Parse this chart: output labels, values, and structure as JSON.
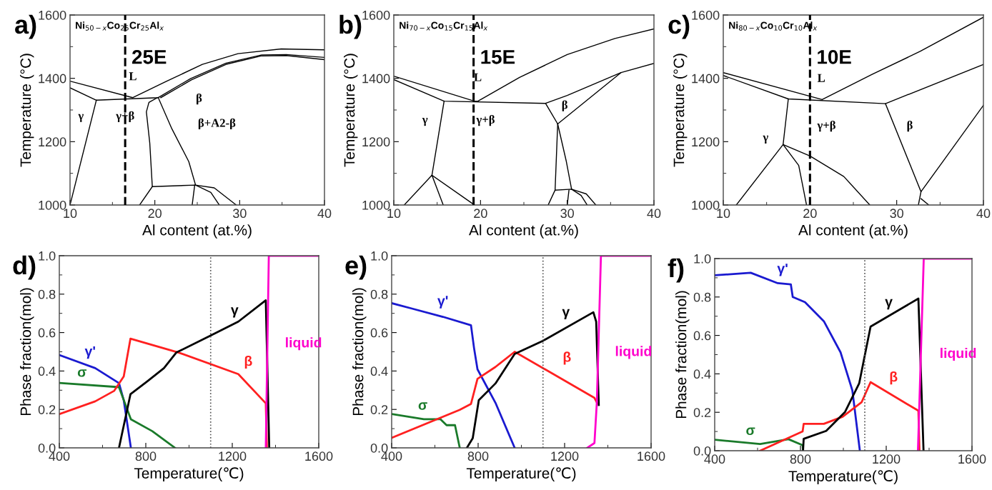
{
  "chart_data": [
    {
      "type": "line",
      "title": "a)",
      "xlabel": "Al content (at.%)",
      "ylabel": "Temperature (°C)",
      "xlim": [
        10,
        40
      ],
      "ylim": [
        1000,
        1600
      ],
      "xticks": [
        10,
        {
          "value": 15,
          "label": null
        },
        20,
        {
          "value": 25,
          "label": null
        },
        30,
        {
          "value": 35,
          "label": null
        },
        40
      ],
      "yticks": [
        1000,
        {
          "value": 1100,
          "label": null
        },
        1200,
        {
          "value": 1300,
          "label": null
        },
        1400,
        {
          "value": 1500,
          "label": null
        },
        1600
      ],
      "ref_lines": [
        {
          "axis": "x",
          "value": 16.5,
          "label": "25E",
          "color": "#000000",
          "line_style": "dashed"
        }
      ],
      "annotations": [
        "Ni$_{50−x}$Co$_{25}$Cr$_{25}$Al$_{x}$",
        "L",
        "γ",
        "γ+β",
        "β",
        "β+A2-β"
      ],
      "series": [
        {
          "color": "#000000",
          "x": [
            10,
            17.4,
            21.4,
            25.6,
            29.8,
            34.9,
            40
          ],
          "values": [
            1391,
            1339,
            1391,
            1444,
            1478,
            1493,
            1490
          ]
        },
        {
          "color": "#000000",
          "x": [
            10,
            13.1,
            20.4,
            24.2,
            28.4,
            32.6,
            35.5,
            40
          ],
          "values": [
            1370,
            1331,
            1339,
            1399,
            1448,
            1474,
            1475,
            1466
          ]
        },
        {
          "color": "#000000",
          "x": [
            13.1,
            10
          ],
          "values": [
            1331,
            1000
          ]
        },
        {
          "color": "#000000",
          "x": [
            20.7,
            24.3,
            28.5,
            32.6,
            35.5,
            40
          ],
          "values": [
            1339,
            1395,
            1445,
            1471,
            1472,
            1459
          ]
        },
        {
          "color": "#000000",
          "x": [
            20.3,
            19.3,
            19.0,
            19.4,
            19.7,
            24.8,
            27.0,
            29.6
          ],
          "values": [
            1339,
            1324,
            1294,
            1196,
            1058,
            1063,
            1054,
            1000
          ]
        },
        {
          "color": "#000000",
          "x": [
            19.7,
            18.2
          ],
          "values": [
            1058,
            1000
          ]
        },
        {
          "color": "#000000",
          "x": [
            20.4,
            22.0,
            24.0,
            24.8,
            26.6,
            27.6
          ],
          "values": [
            1339,
            1241,
            1137,
            1063,
            1040,
            1000
          ]
        },
        {
          "color": "#000000",
          "x": [
            24.7,
            24.4
          ],
          "values": [
            1063,
            1000
          ]
        }
      ]
    },
    {
      "type": "line",
      "title": "b)",
      "xlabel": "Al content (at.%)",
      "ylabel": "Temperature (°C)",
      "xlim": [
        10,
        40
      ],
      "ylim": [
        1000,
        1600
      ],
      "xticks": [
        10,
        {
          "value": 15,
          "label": null
        },
        20,
        {
          "value": 25,
          "label": null
        },
        30,
        {
          "value": 35,
          "label": null
        },
        40
      ],
      "yticks": [
        1000,
        {
          "value": 1100,
          "label": null
        },
        1200,
        {
          "value": 1300,
          "label": null
        },
        1400,
        {
          "value": 1500,
          "label": null
        },
        1600
      ],
      "ref_lines": [
        {
          "axis": "x",
          "value": 19.2,
          "label": "15E",
          "color": "#000000",
          "line_style": "dashed"
        }
      ],
      "annotations": [
        "Ni$_{70−x}$Co$_{15}$Cr$_{15}$Al$_{x}$",
        "L",
        "γ",
        "γ+β",
        "β"
      ],
      "series": [
        {
          "color": "#000000",
          "x": [
            10,
            19.3,
            19.7,
            24.5,
            30.0,
            35.5,
            40
          ],
          "values": [
            1407,
            1328,
            1328,
            1403,
            1475,
            1526,
            1556
          ]
        },
        {
          "color": "#000000",
          "x": [
            10,
            15.8,
            27.5,
            30.0,
            36.2,
            40
          ],
          "values": [
            1396,
            1328,
            1321,
            1346,
            1418,
            1447
          ]
        },
        {
          "color": "#000000",
          "x": [
            15.8,
            14.4,
            11.2
          ],
          "values": [
            1328,
            1094,
            1000
          ]
        },
        {
          "color": "#000000",
          "x": [
            14.4,
            15.7
          ],
          "values": [
            1094,
            1000
          ]
        },
        {
          "color": "#000000",
          "x": [
            14.4,
            19.1
          ],
          "values": [
            1094,
            1004
          ]
        },
        {
          "color": "#000000",
          "x": [
            27.5,
            28.9,
            36.2
          ],
          "values": [
            1321,
            1256,
            1418
          ]
        },
        {
          "color": "#000000",
          "x": [
            28.9,
            28.6,
            27.8
          ],
          "values": [
            1256,
            1047,
            1000
          ]
        },
        {
          "color": "#000000",
          "x": [
            28.9,
            29.9,
            30.5
          ],
          "values": [
            1256,
            1137,
            1050
          ]
        },
        {
          "color": "#000000",
          "x": [
            28.6,
            30.5,
            31.6,
            32.3
          ],
          "values": [
            1047,
            1050,
            1030,
            1000
          ]
        },
        {
          "color": "#000000",
          "x": [
            30.5,
            32.2,
            33.3
          ],
          "values": [
            1050,
            1035,
            1000
          ]
        },
        {
          "color": "#000000",
          "x": [
            30.2,
            30.0
          ],
          "values": [
            1047,
            1000
          ]
        }
      ]
    },
    {
      "type": "line",
      "title": "c)",
      "xlabel": "Al content (at.%)",
      "ylabel": "Temperature (°C)",
      "xlim": [
        10,
        40
      ],
      "ylim": [
        1000,
        1600
      ],
      "xticks": [
        10,
        {
          "value": 15,
          "label": null
        },
        20,
        {
          "value": 25,
          "label": null
        },
        30,
        {
          "value": 35,
          "label": null
        },
        40
      ],
      "yticks": [
        1000,
        {
          "value": 1100,
          "label": null
        },
        1200,
        {
          "value": 1300,
          "label": null
        },
        1400,
        {
          "value": 1500,
          "label": null
        },
        1600
      ],
      "ref_lines": [
        {
          "axis": "x",
          "value": 20.0,
          "label": "10E",
          "color": "#000000",
          "line_style": "dashed"
        }
      ],
      "annotations": [
        "Ni$_{80−x}$Co$_{10}$Cr$_{10}$Al$_{x}$",
        "L",
        "γ",
        "γ+β",
        "β"
      ],
      "series": [
        {
          "color": "#000000",
          "x": [
            10,
            21.4,
            27.2,
            32.7,
            40
          ],
          "values": [
            1418,
            1333,
            1413,
            1485,
            1593
          ]
        },
        {
          "color": "#000000",
          "x": [
            10,
            17.5,
            28.7,
            40
          ],
          "values": [
            1409,
            1335,
            1320,
            1444
          ]
        },
        {
          "color": "#000000",
          "x": [
            17.5,
            16.9,
            11.5
          ],
          "values": [
            1335,
            1191,
            1000
          ]
        },
        {
          "color": "#000000",
          "x": [
            16.9,
            18.7,
            19.6
          ],
          "values": [
            1191,
            1125,
            1000
          ]
        },
        {
          "color": "#000000",
          "x": [
            16.9,
            20.0,
            23.9,
            26.9
          ],
          "values": [
            1191,
            1155,
            1090,
            1000
          ]
        },
        {
          "color": "#000000",
          "x": [
            28.7,
            32.8,
            35.4,
            40
          ],
          "values": [
            1320,
            1042,
            1140,
            1315
          ]
        },
        {
          "color": "#000000",
          "x": [
            32.8,
            32.5
          ],
          "values": [
            1042,
            1000
          ]
        },
        {
          "color": "#000000",
          "x": [
            32.8,
            33.7
          ],
          "values": [
            1020,
            1000
          ]
        }
      ]
    },
    {
      "type": "line",
      "title": "d)",
      "xlabel": "Temperature(℃)",
      "ylabel": "Phase fraction(mol)",
      "xlim": [
        400,
        1600
      ],
      "ylim": [
        0,
        1
      ],
      "xticks": [
        400,
        {
          "value": 600,
          "label": null
        },
        800,
        {
          "value": 1000,
          "label": null
        },
        1200,
        {
          "value": 1400,
          "label": null
        },
        1600
      ],
      "yticks": [
        {
          "value": 0,
          "label": "0.0"
        },
        {
          "value": 0.1,
          "label": null
        },
        {
          "value": 0.2,
          "label": "0.2"
        },
        {
          "value": 0.3,
          "label": null
        },
        {
          "value": 0.4,
          "label": "0.4"
        },
        {
          "value": 0.5,
          "label": null
        },
        {
          "value": 0.6,
          "label": "0.6"
        },
        {
          "value": 0.7,
          "label": null
        },
        {
          "value": 0.8,
          "label": "0.8"
        },
        {
          "value": 0.9,
          "label": null
        },
        {
          "value": 1,
          "label": "1.0"
        }
      ],
      "ref_lines": [
        {
          "axis": "x",
          "value": 1100,
          "color": "#555555",
          "line_style": "dotted"
        }
      ],
      "annotations": [
        {
          "text": "γ'",
          "x": 543,
          "y": 0.425
        },
        {
          "text": "σ",
          "x": 505,
          "y": 0.327
        },
        {
          "text": "β",
          "x": 1228,
          "y": 0.384
        },
        {
          "text": "γ",
          "x": 1211,
          "y": 0.65
        },
        {
          "text": "liquid",
          "x": 1364,
          "y": 0.64
        }
      ],
      "series": [
        {
          "color": "#1a1ad0",
          "x": [
            400,
            566,
            676,
            698,
            731
          ],
          "values": [
            0.483,
            0.415,
            0.337,
            0.248,
            0
          ]
        },
        {
          "color": "#1a7a2a",
          "x": [
            400,
            676,
            731,
            830,
            935
          ],
          "values": [
            0.338,
            0.316,
            0.149,
            0.087,
            0
          ]
        },
        {
          "color": "#ff2020",
          "x": [
            400,
            566,
            654,
            698,
            729,
            952,
            1228,
            1355,
            1360
          ],
          "values": [
            0.176,
            0.242,
            0.297,
            0.372,
            0.568,
            0.496,
            0.384,
            0.232,
            0
          ]
        },
        {
          "color": "#000000",
          "x": [
            676,
            729,
            808,
            884,
            941,
            1095,
            1228,
            1355,
            1371
          ],
          "values": [
            0,
            0.279,
            0.347,
            0.415,
            0.496,
            0.582,
            0.657,
            0.768,
            0
          ]
        },
        {
          "color": "#ff00cc",
          "x": [
            1355,
            1369,
            1600
          ],
          "values": [
            0,
            1,
            1
          ]
        }
      ]
    },
    {
      "type": "line",
      "title": "e)",
      "xlabel": "Temperature(℃)",
      "ylabel": "Phase fraction(mol)",
      "xlim": [
        400,
        1600
      ],
      "ylim": [
        0,
        1
      ],
      "xticks": [
        400,
        {
          "value": 600,
          "label": null
        },
        800,
        {
          "value": 1000,
          "label": null
        },
        1200,
        {
          "value": 1400,
          "label": null
        },
        1600
      ],
      "yticks": [
        {
          "value": 0,
          "label": "0.0"
        },
        {
          "value": 0.1,
          "label": null
        },
        {
          "value": 0.2,
          "label": "0.2"
        },
        {
          "value": 0.3,
          "label": null
        },
        {
          "value": 0.4,
          "label": "0.4"
        },
        {
          "value": 0.5,
          "label": null
        },
        {
          "value": 0.6,
          "label": "0.6"
        },
        {
          "value": 0.7,
          "label": null
        },
        {
          "value": 0.8,
          "label": "0.8"
        },
        {
          "value": 0.9,
          "label": null
        },
        {
          "value": 1,
          "label": "1.0"
        }
      ],
      "ref_lines": [
        {
          "axis": "x",
          "value": 1100,
          "color": "#555555",
          "line_style": "dotted"
        }
      ],
      "annotations": [
        {
          "text": "γ'",
          "x": 637,
          "y": 0.682
        },
        {
          "text": "σ",
          "x": 544,
          "y": 0.15
        },
        {
          "text": "β",
          "x": 1211,
          "y": 0.343
        },
        {
          "text": "γ",
          "x": 1206,
          "y": 0.625
        },
        {
          "text": "liquid",
          "x": 1358,
          "y": 0.6
        }
      ],
      "series": [
        {
          "color": "#1a1ad0",
          "x": [
            400,
            494,
            637,
            767,
            781,
            797,
            880,
            969
          ],
          "values": [
            0.753,
            0.725,
            0.682,
            0.638,
            0.52,
            0.409,
            0.235,
            0
          ]
        },
        {
          "color": "#1a7a2a",
          "x": [
            400,
            549,
            626,
            654,
            693,
            715
          ],
          "values": [
            0.176,
            0.149,
            0.149,
            0.118,
            0.118,
            0
          ]
        },
        {
          "color": "#ff2020",
          "x": [
            400,
            715,
            767,
            797,
            880,
            969,
            1338,
            1352
          ],
          "values": [
            0.052,
            0.198,
            0.229,
            0.359,
            0.421,
            0.5,
            0.26,
            0.23
          ]
        },
        {
          "color": "#000000",
          "x": [
            748,
            775,
            803,
            880,
            969,
            1101,
            1333,
            1346,
            1358
          ],
          "values": [
            0,
            0.05,
            0.248,
            0.335,
            0.489,
            0.558,
            0.706,
            0.657,
            0.223
          ]
        },
        {
          "color": "#ff00cc",
          "x": [
            1305,
            1338,
            1349,
            1368,
            1600
          ],
          "values": [
            0,
            0.025,
            0.235,
            1,
            1
          ]
        }
      ]
    },
    {
      "type": "line",
      "title": "f)",
      "xlabel": "Temperature(℃)",
      "ylabel": "Phase fraction(mol)",
      "xlim": [
        400,
        1600
      ],
      "ylim": [
        0,
        1
      ],
      "xticks": [
        400,
        {
          "value": 600,
          "label": null
        },
        800,
        {
          "value": 1000,
          "label": null
        },
        1200,
        {
          "value": 1400,
          "label": null
        },
        1600
      ],
      "yticks": [
        {
          "value": 0,
          "label": "0.0"
        },
        {
          "value": 0.1,
          "label": null
        },
        {
          "value": 0.2,
          "label": "0.2"
        },
        {
          "value": 0.3,
          "label": null
        },
        {
          "value": 0.4,
          "label": "0.4"
        },
        {
          "value": 0.5,
          "label": null
        },
        {
          "value": 0.6,
          "label": "0.6"
        },
        {
          "value": 0.7,
          "label": null
        },
        {
          "value": 0.8,
          "label": "0.8"
        },
        {
          "value": 0.9,
          "label": null
        },
        {
          "value": 1,
          "label": "1.0"
        }
      ],
      "ref_lines": [
        {
          "axis": "x",
          "value": 1100,
          "color": "#555555",
          "line_style": "dotted"
        }
      ],
      "annotations": [
        {
          "text": "γ'",
          "x": 717,
          "y": 0.87
        },
        {
          "text": "σ",
          "x": 567,
          "y": 0.039
        },
        {
          "text": "β",
          "x": 1234,
          "y": 0.286
        },
        {
          "text": "γ",
          "x": 1212,
          "y": 0.702
        },
        {
          "text": "liquid",
          "x": 1364,
          "y": 0.6
        }
      ],
      "series": [
        {
          "color": "#1a1ad0",
          "x": [
            400,
            568,
            694,
            755,
            764,
            821,
            909,
            987,
            1042,
            1077
          ],
          "values": [
            0.913,
            0.926,
            0.872,
            0.866,
            0.8,
            0.773,
            0.674,
            0.512,
            0.314,
            0
          ]
        },
        {
          "color": "#1a7a2a",
          "x": [
            400,
            612,
            744,
            810,
            812
          ],
          "values": [
            0.057,
            0.035,
            0.06,
            0.029,
            0
          ]
        },
        {
          "color": "#ff2020",
          "x": [
            612,
            810,
            815,
            909,
            997,
            1085,
            1127,
            1350,
            1355
          ],
          "values": [
            0,
            0.1,
            0.14,
            0.14,
            0.177,
            0.252,
            0.357,
            0.208,
            0
          ]
        },
        {
          "color": "#000000",
          "x": [
            812,
            815,
            920,
            1008,
            1074,
            1127,
            1350,
            1374
          ],
          "values": [
            0,
            0.062,
            0.103,
            0.202,
            0.351,
            0.646,
            0.792,
            0
          ]
        },
        {
          "color": "#ff00cc",
          "x": [
            1348,
            1375,
            1600
          ],
          "values": [
            0,
            1,
            1
          ]
        }
      ]
    }
  ]
}
